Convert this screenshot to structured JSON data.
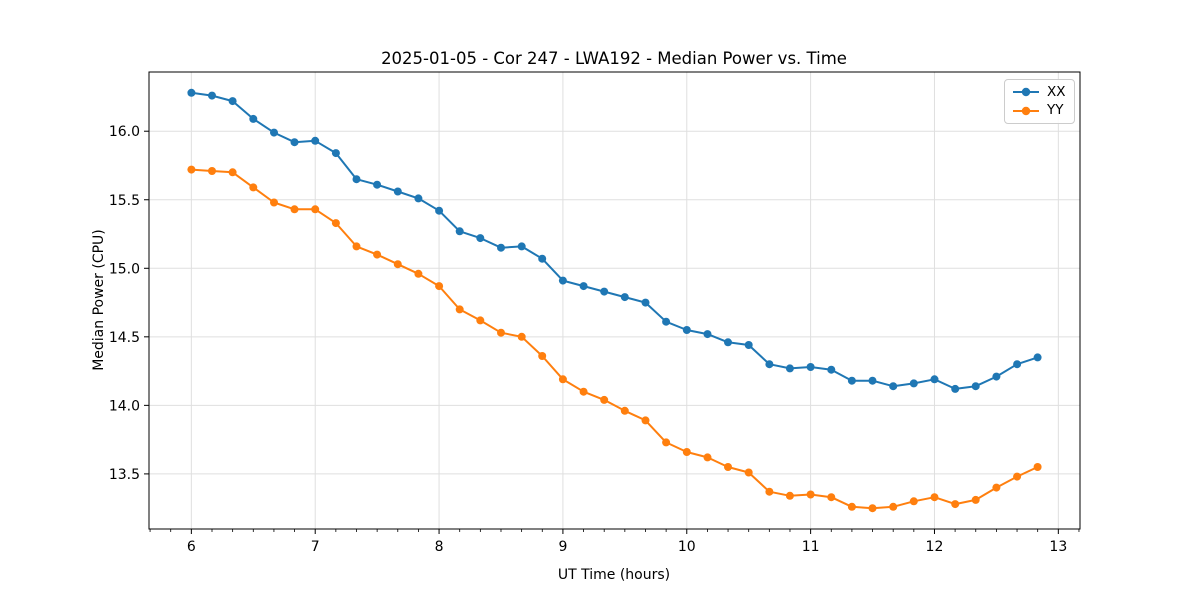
{
  "chart_data": {
    "type": "line",
    "title": "2025-01-05 - Cor 247 - LWA192 - Median Power vs. Time",
    "xlabel": "UT Time (hours)",
    "ylabel": "Median Power (CPU)",
    "x": [
      6.0,
      6.167,
      6.333,
      6.5,
      6.667,
      6.833,
      7.0,
      7.167,
      7.333,
      7.5,
      7.667,
      7.833,
      8.0,
      8.167,
      8.333,
      8.5,
      8.667,
      8.833,
      9.0,
      9.167,
      9.333,
      9.5,
      9.667,
      9.833,
      10.0,
      10.167,
      10.333,
      10.5,
      10.667,
      10.833,
      11.0,
      11.167,
      11.333,
      11.5,
      11.667,
      11.833,
      12.0,
      12.167,
      12.333,
      12.5,
      12.667,
      12.833
    ],
    "series": [
      {
        "name": "XX",
        "color": "#1f77b4",
        "marker": "circle",
        "values": [
          16.28,
          16.26,
          16.22,
          16.09,
          15.99,
          15.92,
          15.93,
          15.84,
          15.65,
          15.61,
          15.56,
          15.51,
          15.42,
          15.27,
          15.22,
          15.15,
          15.16,
          15.07,
          14.91,
          14.87,
          14.83,
          14.79,
          14.75,
          14.61,
          14.55,
          14.52,
          14.46,
          14.44,
          14.3,
          14.27,
          14.28,
          14.26,
          14.18,
          14.18,
          14.14,
          14.16,
          14.19,
          14.12,
          14.14,
          14.21,
          14.3,
          14.35
        ]
      },
      {
        "name": "YY",
        "color": "#ff7f0e",
        "marker": "circle",
        "values": [
          15.72,
          15.71,
          15.7,
          15.59,
          15.48,
          15.43,
          15.43,
          15.33,
          15.16,
          15.1,
          15.03,
          14.96,
          14.87,
          14.7,
          14.62,
          14.53,
          14.5,
          14.36,
          14.19,
          14.1,
          14.04,
          13.96,
          13.89,
          13.73,
          13.66,
          13.62,
          13.55,
          13.51,
          13.37,
          13.34,
          13.35,
          13.33,
          13.26,
          13.25,
          13.26,
          13.3,
          13.33,
          13.28,
          13.31,
          13.4,
          13.48,
          13.55
        ]
      }
    ],
    "xlim": [
      5.658,
      13.175
    ],
    "ylim": [
      13.098,
      16.432
    ],
    "xticks": [
      6,
      7,
      8,
      9,
      10,
      11,
      12,
      13
    ],
    "xtick_labels": [
      "6",
      "7",
      "8",
      "9",
      "10",
      "11",
      "12",
      "13"
    ],
    "yticks": [
      13.5,
      14.0,
      14.5,
      15.0,
      15.5,
      16.0
    ],
    "ytick_labels": [
      "13.5",
      "14.0",
      "14.5",
      "15.0",
      "15.5",
      "16.0"
    ],
    "minor_xtick_step_hours": 0.16667,
    "grid": true,
    "legend": {
      "position": "upper right",
      "entries": [
        "XX",
        "YY"
      ]
    }
  },
  "style": {
    "background": "#ffffff",
    "grid_color": "#dfdfdf",
    "spine_color": "#000000",
    "tick_color": "#000000",
    "text_color": "#000000",
    "legend_border_color": "#cccccc"
  }
}
